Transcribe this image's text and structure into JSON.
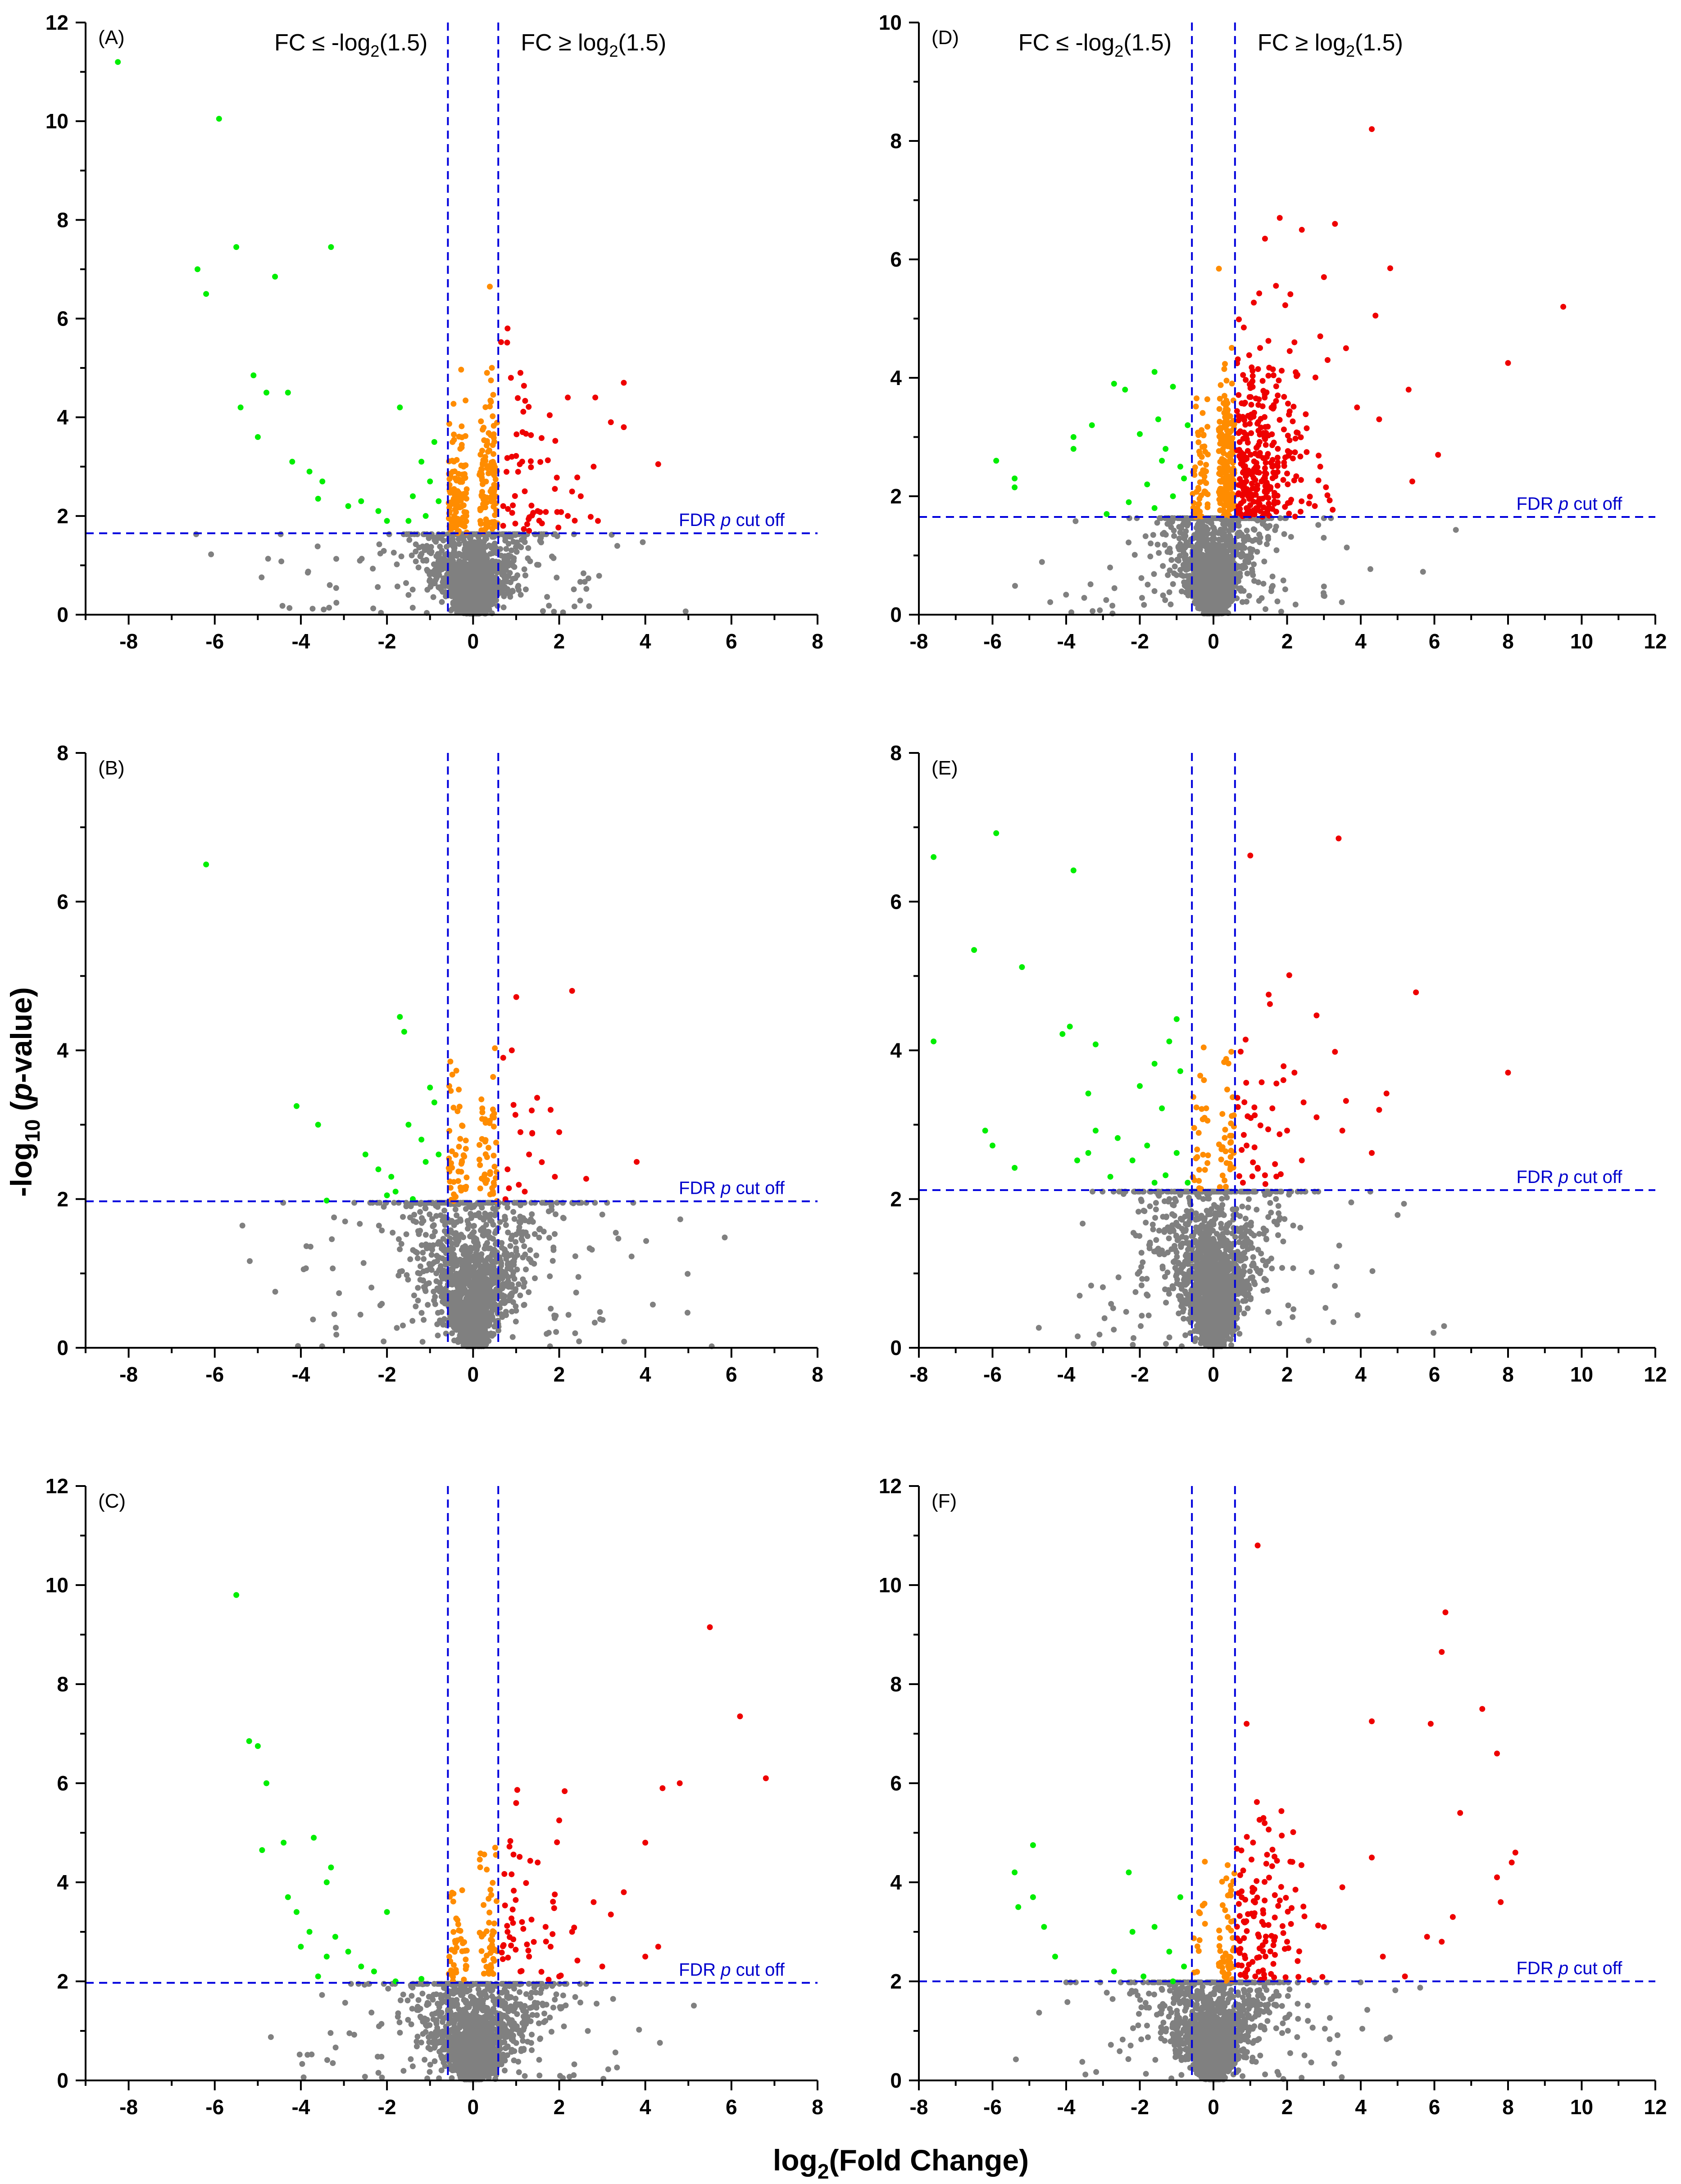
{
  "figure": {
    "xlabel_main": "log",
    "xlabel_sub": "2",
    "xlabel_rest": "(Fold Change)",
    "ylabel_main": "-log",
    "ylabel_sub": "10",
    "ylabel_open": " (",
    "ylabel_italic": "p",
    "ylabel_rest": "-value)",
    "fdr_label_pre": "FDR ",
    "fdr_label_italic": "p",
    "fdr_label_post": " cut off",
    "fc_down_pre": "FC ≤ -log",
    "fc_down_sub": "2",
    "fc_down_post": "(1.5)",
    "fc_up_pre": "FC ≥ log",
    "fc_up_sub": "2",
    "fc_up_post": "(1.5)"
  },
  "colors": {
    "down": "#00ee00",
    "up": "#ee0000",
    "near": "#ff8c00",
    "ns": "#808080",
    "guide": "#0000dd"
  },
  "chart_data": [
    {
      "panel": "(A)",
      "type": "scatter",
      "xlim": [
        -9,
        8
      ],
      "ylim": [
        0,
        12
      ],
      "xticks": [
        -8,
        -6,
        -4,
        -2,
        0,
        2,
        4,
        6,
        8
      ],
      "yticks": [
        0,
        2,
        4,
        6,
        8,
        10,
        12
      ],
      "fc_threshold": 0.585,
      "fdr_cutoff": 1.65,
      "show_fc_labels": true,
      "density": {
        "ns": 1400,
        "near_down": 110,
        "near_up": 110,
        "up_extra": 50
      },
      "down_points": [
        [
          -8.25,
          11.2
        ],
        [
          -5.9,
          10.05
        ],
        [
          -6.4,
          7.0
        ],
        [
          -5.5,
          7.45
        ],
        [
          -6.2,
          6.5
        ],
        [
          -4.6,
          6.85
        ],
        [
          -3.3,
          7.45
        ],
        [
          -5.1,
          4.85
        ],
        [
          -4.8,
          4.5
        ],
        [
          -5.4,
          4.2
        ],
        [
          -4.3,
          4.5
        ],
        [
          -5.0,
          3.6
        ],
        [
          -4.2,
          3.1
        ],
        [
          -3.8,
          2.9
        ],
        [
          -3.5,
          2.7
        ],
        [
          -2.6,
          2.3
        ],
        [
          -2.2,
          2.1
        ],
        [
          -1.7,
          4.2
        ],
        [
          -2.0,
          1.9
        ],
        [
          -1.2,
          3.1
        ],
        [
          -0.9,
          3.5
        ],
        [
          -1.0,
          2.7
        ],
        [
          -1.4,
          2.4
        ],
        [
          -2.9,
          2.2
        ],
        [
          -3.6,
          2.35
        ],
        [
          -1.5,
          1.9
        ],
        [
          -0.8,
          2.3
        ],
        [
          -1.1,
          2.0
        ]
      ],
      "up_points": [
        [
          0.8,
          5.8
        ],
        [
          1.1,
          4.9
        ],
        [
          2.2,
          4.4
        ],
        [
          3.5,
          4.7
        ],
        [
          3.2,
          3.9
        ],
        [
          3.5,
          3.8
        ],
        [
          2.8,
          3.0
        ],
        [
          4.3,
          3.05
        ],
        [
          2.5,
          2.4
        ],
        [
          2.9,
          1.9
        ],
        [
          1.9,
          2.55
        ],
        [
          1.5,
          2.1
        ],
        [
          1.2,
          2.5
        ],
        [
          0.9,
          3.2
        ],
        [
          1.6,
          1.85
        ],
        [
          1.3,
          1.7
        ],
        [
          2.2,
          2.0
        ],
        [
          0.7,
          2.2
        ]
      ]
    },
    {
      "panel": "(B)",
      "type": "scatter",
      "xlim": [
        -9,
        8
      ],
      "ylim": [
        0,
        8
      ],
      "xticks": [
        -8,
        -6,
        -4,
        -2,
        0,
        2,
        4,
        6,
        8
      ],
      "yticks": [
        0,
        2,
        4,
        6,
        8
      ],
      "fc_threshold": 0.585,
      "fdr_cutoff": 1.97,
      "show_fc_labels": false,
      "density": {
        "ns": 1600,
        "near_down": 45,
        "near_up": 45,
        "up_extra": 12
      },
      "down_points": [
        [
          -6.2,
          6.5
        ],
        [
          -4.1,
          3.25
        ],
        [
          -3.6,
          3.0
        ],
        [
          -3.4,
          1.98
        ],
        [
          -1.7,
          4.45
        ],
        [
          -1.6,
          4.25
        ],
        [
          -1.0,
          3.5
        ],
        [
          -0.9,
          3.3
        ],
        [
          -1.5,
          3.0
        ],
        [
          -2.5,
          2.6
        ],
        [
          -2.2,
          2.4
        ],
        [
          -1.9,
          2.3
        ],
        [
          -1.8,
          2.1
        ],
        [
          -1.2,
          2.8
        ],
        [
          -0.8,
          2.6
        ],
        [
          -1.4,
          2.0
        ],
        [
          -2.0,
          2.05
        ],
        [
          -1.1,
          2.5
        ]
      ],
      "up_points": [
        [
          2.3,
          4.8
        ],
        [
          0.9,
          4.0
        ],
        [
          0.7,
          3.9
        ],
        [
          1.8,
          3.2
        ],
        [
          2.0,
          2.9
        ],
        [
          1.1,
          2.9
        ],
        [
          1.9,
          2.3
        ],
        [
          3.8,
          2.5
        ],
        [
          1.2,
          2.1
        ],
        [
          0.8,
          2.4
        ],
        [
          1.3,
          2.6
        ]
      ]
    },
    {
      "panel": "(C)",
      "type": "scatter",
      "xlim": [
        -9,
        8
      ],
      "ylim": [
        0,
        12
      ],
      "xticks": [
        -8,
        -6,
        -4,
        -2,
        0,
        2,
        4,
        6,
        8
      ],
      "yticks": [
        0,
        2,
        4,
        6,
        8,
        10,
        12
      ],
      "fc_threshold": 0.585,
      "fdr_cutoff": 1.97,
      "show_fc_labels": false,
      "density": {
        "ns": 1600,
        "near_down": 40,
        "near_up": 45,
        "up_extra": 45
      },
      "down_points": [
        [
          -5.5,
          9.8
        ],
        [
          -5.2,
          6.85
        ],
        [
          -5.0,
          6.75
        ],
        [
          -4.8,
          6.0
        ],
        [
          -4.9,
          4.65
        ],
        [
          -4.4,
          4.8
        ],
        [
          -3.7,
          4.9
        ],
        [
          -3.3,
          4.3
        ],
        [
          -3.4,
          4.0
        ],
        [
          -4.3,
          3.7
        ],
        [
          -4.1,
          3.4
        ],
        [
          -3.8,
          3.0
        ],
        [
          -3.2,
          2.9
        ],
        [
          -4.0,
          2.7
        ],
        [
          -2.9,
          2.6
        ],
        [
          -3.4,
          2.5
        ],
        [
          -2.6,
          2.3
        ],
        [
          -1.8,
          2.0
        ],
        [
          -2.3,
          2.2
        ],
        [
          -2.0,
          3.4
        ],
        [
          -3.6,
          2.1
        ],
        [
          -1.2,
          2.05
        ]
      ],
      "up_points": [
        [
          5.5,
          9.15
        ],
        [
          6.2,
          7.35
        ],
        [
          6.8,
          6.1
        ],
        [
          4.8,
          6.0
        ],
        [
          4.4,
          5.9
        ],
        [
          1.0,
          5.6
        ],
        [
          2.0,
          5.25
        ],
        [
          1.5,
          4.4
        ],
        [
          4.0,
          4.8
        ],
        [
          3.5,
          3.8
        ],
        [
          2.8,
          3.6
        ],
        [
          3.2,
          3.35
        ],
        [
          2.3,
          3.0
        ],
        [
          1.8,
          2.7
        ],
        [
          1.3,
          2.5
        ],
        [
          4.0,
          2.5
        ],
        [
          4.3,
          2.7
        ],
        [
          3.0,
          2.3
        ],
        [
          1.1,
          2.2
        ],
        [
          2.0,
          2.1
        ],
        [
          0.8,
          3.0
        ]
      ]
    },
    {
      "panel": "(D)",
      "type": "scatter",
      "xlim": [
        -8,
        12
      ],
      "ylim": [
        0,
        10
      ],
      "xticks": [
        -8,
        -6,
        -4,
        -2,
        0,
        2,
        4,
        6,
        8,
        10,
        12
      ],
      "yticks": [
        0,
        2,
        4,
        6,
        8,
        10
      ],
      "fc_threshold": 0.585,
      "fdr_cutoff": 1.65,
      "show_fc_labels": true,
      "density": {
        "ns": 1500,
        "near_down": 60,
        "near_up": 200,
        "up_extra": 320
      },
      "down_points": [
        [
          -5.9,
          2.6
        ],
        [
          -5.4,
          2.3
        ],
        [
          -5.4,
          2.15
        ],
        [
          -3.8,
          3.0
        ],
        [
          -3.8,
          2.8
        ],
        [
          -3.3,
          3.2
        ],
        [
          -2.7,
          3.9
        ],
        [
          -2.4,
          3.8
        ],
        [
          -1.6,
          4.1
        ],
        [
          -1.1,
          3.85
        ],
        [
          -1.5,
          3.3
        ],
        [
          -2.0,
          3.05
        ],
        [
          -1.3,
          2.8
        ],
        [
          -0.9,
          2.5
        ],
        [
          -1.8,
          2.2
        ],
        [
          -1.1,
          2.0
        ],
        [
          -2.3,
          1.9
        ],
        [
          -1.6,
          1.8
        ],
        [
          -0.8,
          2.3
        ],
        [
          -1.4,
          2.6
        ],
        [
          -0.7,
          3.2
        ],
        [
          -2.9,
          1.7
        ]
      ],
      "up_points": [
        [
          4.3,
          8.2
        ],
        [
          1.8,
          6.7
        ],
        [
          3.3,
          6.6
        ],
        [
          2.4,
          6.5
        ],
        [
          1.4,
          6.35
        ],
        [
          4.8,
          5.85
        ],
        [
          3.0,
          5.7
        ],
        [
          9.5,
          5.2
        ],
        [
          4.4,
          5.05
        ],
        [
          2.9,
          4.7
        ],
        [
          3.6,
          4.5
        ],
        [
          8.0,
          4.25
        ],
        [
          3.1,
          4.3
        ],
        [
          2.2,
          4.6
        ],
        [
          5.3,
          3.8
        ],
        [
          4.5,
          3.3
        ],
        [
          3.9,
          3.5
        ],
        [
          5.4,
          2.25
        ],
        [
          6.1,
          2.7
        ],
        [
          2.9,
          2.5
        ]
      ]
    },
    {
      "panel": "(E)",
      "type": "scatter",
      "xlim": [
        -8,
        12
      ],
      "ylim": [
        0,
        8
      ],
      "xticks": [
        -8,
        -6,
        -4,
        -2,
        0,
        2,
        4,
        6,
        8,
        10,
        12
      ],
      "yticks": [
        0,
        2,
        4,
        6,
        8
      ],
      "fc_threshold": 0.585,
      "fdr_cutoff": 2.12,
      "show_fc_labels": false,
      "density": {
        "ns": 1800,
        "near_down": 25,
        "near_up": 35,
        "up_extra": 30
      },
      "down_points": [
        [
          -7.6,
          6.6
        ],
        [
          -5.9,
          6.92
        ],
        [
          -6.5,
          5.35
        ],
        [
          -3.8,
          6.42
        ],
        [
          -5.2,
          5.12
        ],
        [
          -7.6,
          4.12
        ],
        [
          -4.1,
          4.22
        ],
        [
          -3.9,
          4.32
        ],
        [
          -3.2,
          4.08
        ],
        [
          -1.0,
          4.42
        ],
        [
          -1.2,
          4.12
        ],
        [
          -0.9,
          3.72
        ],
        [
          -1.6,
          3.82
        ],
        [
          -3.4,
          3.42
        ],
        [
          -2.0,
          3.52
        ],
        [
          -1.4,
          3.22
        ],
        [
          -6.2,
          2.92
        ],
        [
          -6.0,
          2.72
        ],
        [
          -3.2,
          2.92
        ],
        [
          -2.6,
          2.82
        ],
        [
          -1.8,
          2.72
        ],
        [
          -1.0,
          2.62
        ],
        [
          -3.7,
          2.52
        ],
        [
          -5.4,
          2.42
        ],
        [
          -2.2,
          2.52
        ],
        [
          -1.3,
          2.32
        ],
        [
          -0.7,
          2.22
        ],
        [
          -1.6,
          2.22
        ],
        [
          -3.4,
          2.62
        ],
        [
          -2.8,
          2.3
        ]
      ],
      "up_points": [
        [
          3.4,
          6.85
        ],
        [
          1.0,
          6.62
        ],
        [
          5.5,
          4.78
        ],
        [
          1.5,
          4.75
        ],
        [
          2.8,
          4.47
        ],
        [
          8.0,
          3.7
        ],
        [
          3.3,
          3.98
        ],
        [
          2.2,
          3.7
        ],
        [
          4.7,
          3.42
        ],
        [
          3.6,
          3.32
        ],
        [
          1.6,
          3.22
        ],
        [
          2.0,
          2.92
        ],
        [
          4.3,
          2.62
        ],
        [
          3.5,
          2.92
        ],
        [
          2.4,
          2.52
        ],
        [
          1.2,
          2.42
        ],
        [
          0.9,
          2.72
        ],
        [
          1.4,
          2.32
        ],
        [
          0.8,
          2.22
        ],
        [
          2.8,
          3.1
        ],
        [
          1.9,
          3.6
        ],
        [
          4.5,
          3.2
        ]
      ]
    },
    {
      "panel": "(F)",
      "type": "scatter",
      "xlim": [
        -8,
        12
      ],
      "ylim": [
        0,
        12
      ],
      "xticks": [
        -8,
        -6,
        -4,
        -2,
        0,
        2,
        4,
        6,
        8,
        10,
        12
      ],
      "yticks": [
        0,
        2,
        4,
        6,
        8,
        10,
        12
      ],
      "fc_threshold": 0.585,
      "fdr_cutoff": 2.0,
      "show_fc_labels": false,
      "density": {
        "ns": 1700,
        "near_down": 12,
        "near_up": 50,
        "up_extra": 120
      },
      "down_points": [
        [
          -4.9,
          4.75
        ],
        [
          -5.4,
          4.2
        ],
        [
          -5.3,
          3.5
        ],
        [
          -4.9,
          3.7
        ],
        [
          -4.6,
          3.1
        ],
        [
          -4.3,
          2.5
        ],
        [
          -2.3,
          4.2
        ],
        [
          -2.2,
          3.0
        ],
        [
          -1.6,
          3.1
        ],
        [
          -1.2,
          2.6
        ],
        [
          -0.9,
          3.7
        ],
        [
          -0.8,
          2.3
        ],
        [
          -2.7,
          2.2
        ],
        [
          -1.9,
          2.1
        ],
        [
          -1.1,
          2.0
        ]
      ],
      "up_points": [
        [
          1.2,
          10.8
        ],
        [
          6.3,
          9.45
        ],
        [
          6.2,
          8.65
        ],
        [
          7.3,
          7.5
        ],
        [
          0.9,
          7.2
        ],
        [
          4.3,
          7.25
        ],
        [
          5.9,
          7.2
        ],
        [
          7.7,
          6.6
        ],
        [
          6.7,
          5.4
        ],
        [
          8.2,
          4.6
        ],
        [
          8.1,
          4.4
        ],
        [
          7.7,
          4.1
        ],
        [
          7.8,
          3.6
        ],
        [
          4.3,
          4.5
        ],
        [
          3.5,
          3.9
        ],
        [
          6.5,
          3.3
        ],
        [
          5.8,
          2.9
        ],
        [
          6.2,
          2.8
        ],
        [
          5.2,
          2.1
        ],
        [
          4.6,
          2.5
        ],
        [
          3.0,
          3.1
        ],
        [
          2.0,
          2.8
        ]
      ]
    }
  ]
}
